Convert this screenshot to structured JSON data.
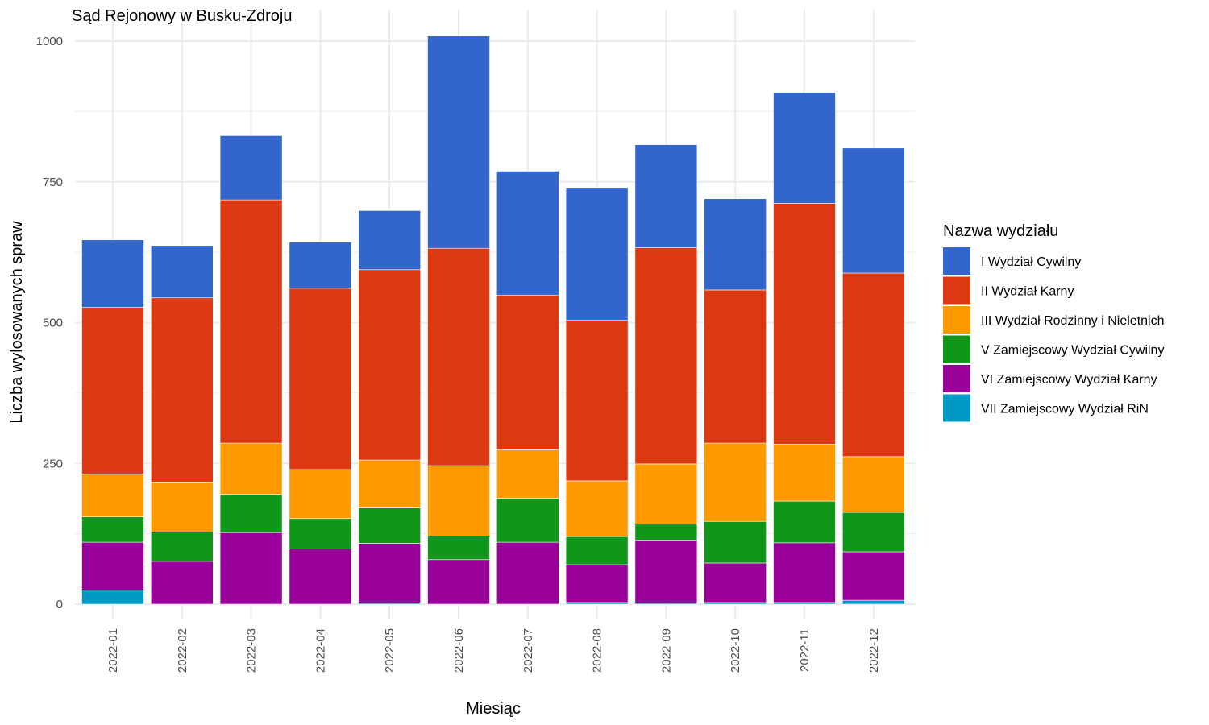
{
  "chart_data": {
    "type": "bar",
    "stacked": true,
    "title": "Sąd Rejonowy w Busku-Zdroju",
    "xlabel": "Miesiąc",
    "ylabel": "Liczba wylosowanych spraw",
    "ylim": [
      0,
      1000
    ],
    "yticks": [
      0,
      250,
      500,
      750,
      1000
    ],
    "grid": true,
    "legend_title": "Nazwa wydziału",
    "legend_position": "right",
    "categories": [
      "2022-01",
      "2022-02",
      "2022-03",
      "2022-04",
      "2022-05",
      "2022-06",
      "2022-07",
      "2022-08",
      "2022-09",
      "2022-10",
      "2022-11",
      "2022-12"
    ],
    "series": [
      {
        "name": "I Wydział Cywilny",
        "color": "#3366cc",
        "values": [
          120,
          93,
          114,
          82,
          105,
          377,
          220,
          236,
          183,
          162,
          197,
          222
        ]
      },
      {
        "name": "II Wydział Karny",
        "color": "#dc3912",
        "values": [
          296,
          327,
          432,
          322,
          338,
          386,
          275,
          285,
          384,
          272,
          428,
          326
        ]
      },
      {
        "name": "III Wydział Rodzinny i Nieletnich",
        "color": "#ff9900",
        "values": [
          76,
          89,
          91,
          87,
          85,
          125,
          86,
          99,
          107,
          139,
          101,
          99
        ]
      },
      {
        "name": "V Zamiejscowy Wydział Cywilny",
        "color": "#109618",
        "values": [
          45,
          52,
          68,
          54,
          63,
          42,
          78,
          50,
          28,
          74,
          74,
          70
        ]
      },
      {
        "name": "VI Zamiejscowy Wydział Karny",
        "color": "#990099",
        "values": [
          85,
          76,
          127,
          98,
          106,
          79,
          110,
          67,
          112,
          70,
          106,
          86
        ]
      },
      {
        "name": "VII Zamiejscowy Wydział RiN",
        "color": "#0099c6",
        "values": [
          25,
          0,
          0,
          0,
          2,
          0,
          0,
          3,
          2,
          3,
          3,
          7
        ]
      }
    ]
  }
}
